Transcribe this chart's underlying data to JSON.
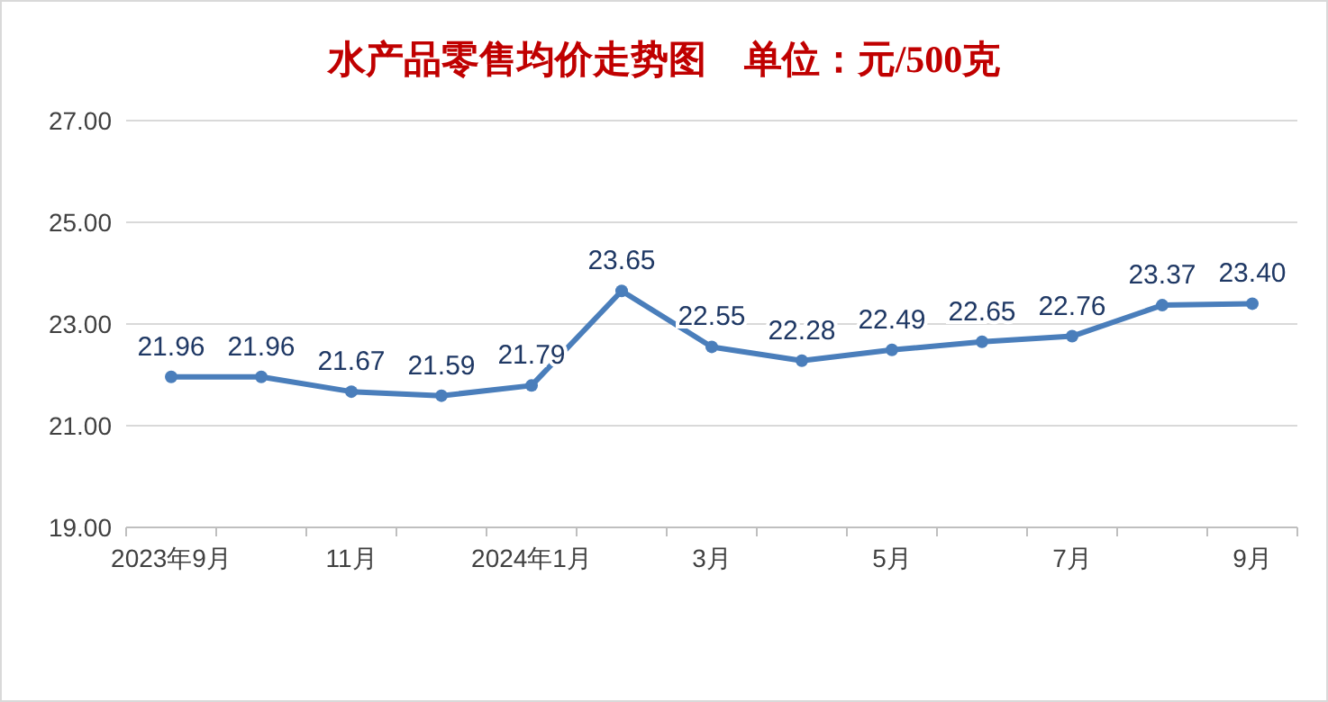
{
  "chart_data": {
    "type": "line",
    "title": "水产品零售均价走势图　单位：元/500克",
    "categories": [
      "2023年9月",
      null,
      "11月",
      null,
      "2024年1月",
      null,
      "3月",
      null,
      "5月",
      null,
      "7月",
      null,
      "9月"
    ],
    "series": [
      {
        "color": "#4a7ebb",
        "values": [
          21.96,
          21.96,
          21.67,
          21.59,
          21.79,
          23.65,
          22.55,
          22.28,
          22.49,
          22.65,
          22.76,
          23.37,
          23.4
        ],
        "value_labels": [
          "21.96",
          "21.96",
          "21.67",
          "21.59",
          "21.79",
          "23.65",
          "22.55",
          "22.28",
          "22.49",
          "22.65",
          "22.76",
          "23.37",
          "23.40"
        ]
      }
    ],
    "ylim": [
      19,
      27
    ],
    "yticks": [
      {
        "value": 19,
        "label": "19.00"
      },
      {
        "value": 21,
        "label": "21.00"
      },
      {
        "value": 23,
        "label": "23.00"
      },
      {
        "value": 25,
        "label": "25.00"
      },
      {
        "value": 27,
        "label": "27.00"
      }
    ],
    "grid": "y",
    "marker": "circle",
    "line_style": "solid"
  }
}
